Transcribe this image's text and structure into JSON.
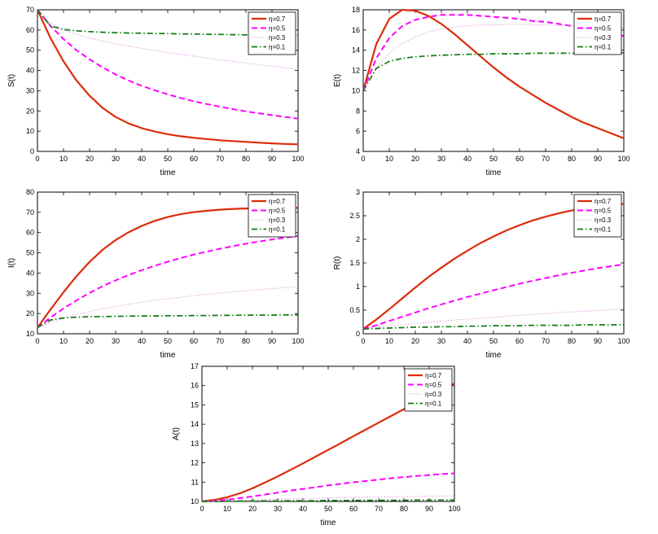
{
  "figure": {
    "background": "#ffffff",
    "description": "Five line-plot panels S(t), E(t), I(t), R(t), A(t) versus time for four values of η"
  },
  "legend": {
    "entries": [
      "η=0.7",
      "η=0.5",
      "η=0.3",
      "η=0.1"
    ],
    "position": "top-right"
  },
  "series_styles": [
    {
      "name": "η=0.7",
      "color": "#dd2c0a",
      "dash": "solid",
      "width": 2.2
    },
    {
      "name": "η=0.5",
      "color": "#ff00ff",
      "dash": "dashed",
      "width": 2.0
    },
    {
      "name": "η=0.3",
      "color": "#d478d4",
      "dash": "dotted",
      "width": 1.1
    },
    {
      "name": "η=0.1",
      "color": "#0e7a0e",
      "dash": "dashdot",
      "width": 1.7
    }
  ],
  "chart_data": [
    {
      "id": "S",
      "type": "line",
      "title": "",
      "xlabel": "time",
      "ylabel": "S(t)",
      "xlim": [
        0,
        100
      ],
      "ylim": [
        0,
        70
      ],
      "xticks": [
        0,
        10,
        20,
        30,
        40,
        50,
        60,
        70,
        80,
        90,
        100
      ],
      "yticks": [
        0,
        10,
        20,
        30,
        40,
        50,
        60,
        70
      ],
      "grid": false,
      "legend_position": "top-right",
      "x": [
        0,
        5,
        10,
        15,
        20,
        25,
        30,
        35,
        40,
        45,
        50,
        55,
        60,
        65,
        70,
        75,
        80,
        85,
        90,
        95,
        100
      ],
      "series": [
        {
          "name": "η=0.7",
          "values": [
            70,
            56,
            44.5,
            35,
            27.5,
            21.5,
            17,
            13.8,
            11.5,
            9.8,
            8.5,
            7.5,
            6.7,
            6.1,
            5.5,
            5.1,
            4.7,
            4.3,
            4.0,
            3.7,
            3.5
          ]
        },
        {
          "name": "η=0.5",
          "values": [
            70,
            62,
            55.5,
            50,
            45.5,
            41.5,
            38,
            35,
            32.4,
            30.2,
            28.2,
            26.4,
            24.8,
            23.4,
            22.1,
            20.9,
            19.8,
            18.8,
            17.9,
            17.0,
            16.2
          ]
        },
        {
          "name": "η=0.3",
          "values": [
            70,
            63.5,
            60,
            57.8,
            56,
            54.5,
            53.2,
            52,
            50.9,
            49.9,
            48.9,
            48,
            47.1,
            46.2,
            45.3,
            44.5,
            43.7,
            42.9,
            42.1,
            41.3,
            40.6
          ]
        },
        {
          "name": "η=0.1",
          "values": [
            70,
            62,
            60.3,
            59.6,
            59.2,
            58.9,
            58.7,
            58.5,
            58.4,
            58.3,
            58.2,
            58.1,
            58.0,
            57.9,
            57.8,
            57.7,
            57.6,
            57.5,
            57.5,
            57.4,
            57.3
          ]
        }
      ]
    },
    {
      "id": "E",
      "type": "line",
      "title": "",
      "xlabel": "time",
      "ylabel": "E(t)",
      "xlim": [
        0,
        100
      ],
      "ylim": [
        4,
        18
      ],
      "xticks": [
        0,
        10,
        20,
        30,
        40,
        50,
        60,
        70,
        80,
        90,
        100
      ],
      "yticks": [
        4,
        6,
        8,
        10,
        12,
        14,
        16,
        18
      ],
      "grid": false,
      "legend_position": "top-right",
      "x": [
        0,
        5,
        10,
        15,
        20,
        25,
        30,
        35,
        40,
        45,
        50,
        55,
        60,
        65,
        70,
        75,
        80,
        85,
        90,
        95,
        100
      ],
      "series": [
        {
          "name": "η=0.7",
          "values": [
            10,
            14.6,
            17.1,
            18,
            17.9,
            17.4,
            16.6,
            15.6,
            14.5,
            13.4,
            12.3,
            11.3,
            10.4,
            9.6,
            8.8,
            8.1,
            7.4,
            6.8,
            6.3,
            5.8,
            5.3
          ]
        },
        {
          "name": "η=0.5",
          "values": [
            10,
            13.2,
            15.2,
            16.4,
            17,
            17.3,
            17.5,
            17.5,
            17.5,
            17.4,
            17.3,
            17.2,
            17.1,
            16.9,
            16.8,
            16.6,
            16.4,
            16.2,
            16.0,
            15.7,
            15.4
          ]
        },
        {
          "name": "η=0.3",
          "values": [
            10,
            12.2,
            13.7,
            14.7,
            15.3,
            15.8,
            16.1,
            16.3,
            16.4,
            16.5,
            16.5,
            16.55,
            16.55,
            16.5,
            16.5,
            16.45,
            16.4,
            16.35,
            16.3,
            16.25,
            16.2
          ]
        },
        {
          "name": "η=0.1",
          "values": [
            10,
            12.2,
            12.9,
            13.2,
            13.35,
            13.45,
            13.5,
            13.55,
            13.6,
            13.6,
            13.65,
            13.65,
            13.65,
            13.7,
            13.7,
            13.7,
            13.7,
            13.7,
            13.7,
            13.75,
            13.75
          ]
        }
      ]
    },
    {
      "id": "I",
      "type": "line",
      "title": "",
      "xlabel": "time",
      "ylabel": "I(t)",
      "xlim": [
        0,
        100
      ],
      "ylim": [
        10,
        80
      ],
      "xticks": [
        0,
        10,
        20,
        30,
        40,
        50,
        60,
        70,
        80,
        90,
        100
      ],
      "yticks": [
        10,
        20,
        30,
        40,
        50,
        60,
        70,
        80
      ],
      "grid": false,
      "legend_position": "top-right",
      "x": [
        0,
        5,
        10,
        15,
        20,
        25,
        30,
        35,
        40,
        45,
        50,
        55,
        60,
        65,
        70,
        75,
        80,
        85,
        90,
        95,
        100
      ],
      "series": [
        {
          "name": "η=0.7",
          "values": [
            13,
            22,
            30.5,
            38.5,
            45.5,
            51.5,
            56.3,
            60.2,
            63.3,
            65.8,
            67.7,
            69.1,
            70.1,
            70.8,
            71.3,
            71.7,
            71.9,
            72.1,
            72.2,
            72.2,
            72.2
          ]
        },
        {
          "name": "η=0.5",
          "values": [
            13,
            18,
            22.5,
            26.5,
            30.2,
            33.5,
            36.4,
            39,
            41.4,
            43.6,
            45.6,
            47.4,
            49.1,
            50.6,
            52,
            53.3,
            54.5,
            55.6,
            56.6,
            57.5,
            58.3
          ]
        },
        {
          "name": "η=0.3",
          "values": [
            13,
            15.8,
            17.8,
            19.5,
            21,
            22.3,
            23.5,
            24.6,
            25.6,
            26.5,
            27.3,
            28.1,
            28.8,
            29.5,
            30.1,
            30.7,
            31.3,
            31.8,
            32.3,
            32.8,
            33.2
          ]
        },
        {
          "name": "η=0.1",
          "values": [
            13,
            16.8,
            17.8,
            18.2,
            18.4,
            18.5,
            18.6,
            18.7,
            18.8,
            18.8,
            18.9,
            18.9,
            19,
            19,
            19.1,
            19.1,
            19.2,
            19.2,
            19.2,
            19.3,
            19.3
          ]
        }
      ]
    },
    {
      "id": "R",
      "type": "line",
      "title": "",
      "xlabel": "time",
      "ylabel": "R(t)",
      "xlim": [
        0,
        100
      ],
      "ylim": [
        0,
        3
      ],
      "xticks": [
        0,
        10,
        20,
        30,
        40,
        50,
        60,
        70,
        80,
        90,
        100
      ],
      "yticks": [
        0,
        0.5,
        1,
        1.5,
        2,
        2.5,
        3
      ],
      "grid": false,
      "legend_position": "top-right",
      "x": [
        0,
        5,
        10,
        15,
        20,
        25,
        30,
        35,
        40,
        45,
        50,
        55,
        60,
        65,
        70,
        75,
        80,
        85,
        90,
        95,
        100
      ],
      "series": [
        {
          "name": "η=0.7",
          "values": [
            0.1,
            0.3,
            0.52,
            0.75,
            0.98,
            1.2,
            1.4,
            1.59,
            1.76,
            1.92,
            2.06,
            2.19,
            2.3,
            2.4,
            2.48,
            2.55,
            2.61,
            2.66,
            2.7,
            2.73,
            2.75
          ]
        },
        {
          "name": "η=0.5",
          "values": [
            0.1,
            0.18,
            0.27,
            0.36,
            0.45,
            0.54,
            0.62,
            0.7,
            0.78,
            0.85,
            0.92,
            0.99,
            1.06,
            1.12,
            1.18,
            1.24,
            1.29,
            1.34,
            1.39,
            1.43,
            1.47
          ]
        },
        {
          "name": "η=0.3",
          "values": [
            0.1,
            0.13,
            0.16,
            0.19,
            0.22,
            0.24,
            0.27,
            0.29,
            0.31,
            0.33,
            0.35,
            0.37,
            0.39,
            0.41,
            0.43,
            0.45,
            0.46,
            0.48,
            0.49,
            0.51,
            0.52
          ]
        },
        {
          "name": "η=0.1",
          "values": [
            0.1,
            0.11,
            0.12,
            0.13,
            0.14,
            0.14,
            0.15,
            0.15,
            0.16,
            0.16,
            0.17,
            0.17,
            0.17,
            0.18,
            0.18,
            0.18,
            0.18,
            0.19,
            0.19,
            0.19,
            0.19
          ]
        }
      ]
    },
    {
      "id": "A",
      "type": "line",
      "title": "",
      "xlabel": "time",
      "ylabel": "A(t)",
      "xlim": [
        0,
        100
      ],
      "ylim": [
        10,
        17
      ],
      "xticks": [
        0,
        10,
        20,
        30,
        40,
        50,
        60,
        70,
        80,
        90,
        100
      ],
      "yticks": [
        10,
        11,
        12,
        13,
        14,
        15,
        16,
        17
      ],
      "grid": false,
      "legend_position": "top-right",
      "x": [
        0,
        5,
        10,
        15,
        20,
        25,
        30,
        35,
        40,
        45,
        50,
        55,
        60,
        65,
        70,
        75,
        80,
        85,
        90,
        95,
        100
      ],
      "series": [
        {
          "name": "η=0.7",
          "values": [
            10,
            10.08,
            10.22,
            10.42,
            10.68,
            10.98,
            11.3,
            11.63,
            11.97,
            12.32,
            12.67,
            13.02,
            13.38,
            13.73,
            14.08,
            14.43,
            14.78,
            15.12,
            15.46,
            15.8,
            16.1
          ]
        },
        {
          "name": "η=0.5",
          "values": [
            10,
            10.03,
            10.09,
            10.17,
            10.26,
            10.36,
            10.46,
            10.56,
            10.65,
            10.74,
            10.83,
            10.91,
            10.99,
            11.06,
            11.13,
            11.2,
            11.26,
            11.32,
            11.37,
            11.42,
            11.45
          ]
        },
        {
          "name": "η=0.3",
          "values": [
            10,
            10.01,
            10.03,
            10.05,
            10.07,
            10.09,
            10.11,
            10.13,
            10.15,
            10.16,
            10.18,
            10.19,
            10.21,
            10.22,
            10.23,
            10.24,
            10.25,
            10.26,
            10.27,
            10.28,
            10.29
          ]
        },
        {
          "name": "η=0.1",
          "values": [
            10,
            10.0,
            10.01,
            10.02,
            10.02,
            10.03,
            10.03,
            10.04,
            10.04,
            10.04,
            10.05,
            10.05,
            10.05,
            10.06,
            10.06,
            10.06,
            10.06,
            10.07,
            10.07,
            10.07,
            10.07
          ]
        }
      ]
    }
  ]
}
